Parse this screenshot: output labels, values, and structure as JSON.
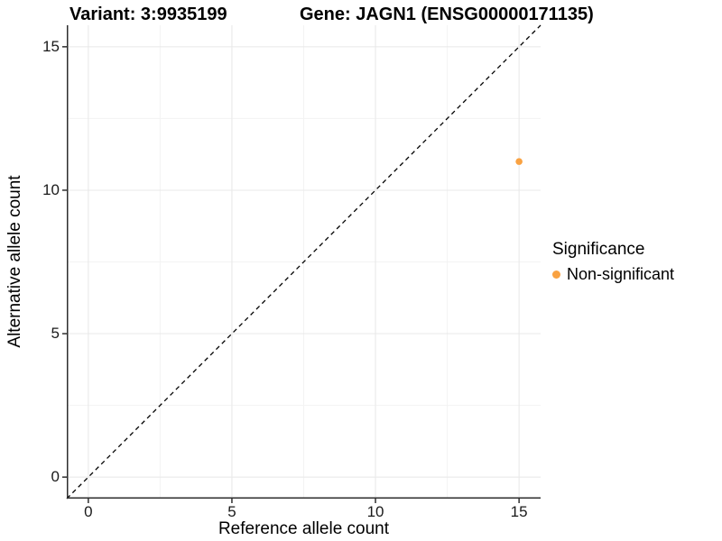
{
  "colors": {
    "background": "#FFFFFF",
    "accent_orange": "#F9A242",
    "grid_major": "#E8E8E8",
    "grid_minor": "#F3F3F3",
    "axis_line": "#2E2E2E",
    "reference_line": "#000000"
  },
  "chart_data": {
    "type": "scatter",
    "title_left": "Variant: 3:9935199",
    "title_right": "Gene: JAGN1 (ENSG00000171135)",
    "xlabel": "Reference allele count",
    "ylabel": "Alternative allele count",
    "xlim": [
      -0.75,
      15.75
    ],
    "ylim": [
      -0.75,
      15.75
    ],
    "x_ticks": [
      0,
      5,
      10,
      15
    ],
    "y_ticks": [
      0,
      5,
      10,
      15
    ],
    "x_minor_ticks": [
      2.5,
      7.5,
      12.5
    ],
    "y_minor_ticks": [
      2.5,
      7.5,
      12.5
    ],
    "grid": "major+minor",
    "reference_line": {
      "type": "identity y=x",
      "style": "dashed",
      "color": "#000000"
    },
    "series": [
      {
        "name": "Non-significant",
        "color": "#F9A242",
        "marker": "circle",
        "points": [
          {
            "x": 15,
            "y": 11
          }
        ]
      }
    ],
    "legend": {
      "position": "right",
      "title": "Significance",
      "items": [
        {
          "label": "Non-significant",
          "color": "#F9A242"
        }
      ]
    }
  }
}
